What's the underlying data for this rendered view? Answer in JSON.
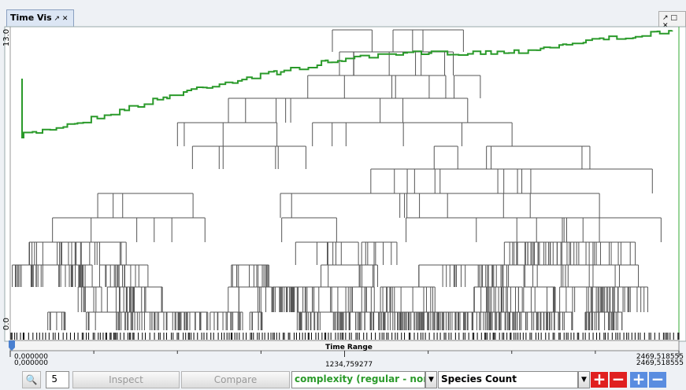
{
  "tab": {
    "title": "Time Vis"
  },
  "plot": {
    "y_max_label": "13.0",
    "y_min_label": "0.0"
  },
  "time_range": {
    "label": "Time Range",
    "start_labels": [
      "0,000000",
      "0,000000"
    ],
    "mid_label": "1234,759277",
    "end_labels": [
      "2469,518555",
      "2469,518555"
    ]
  },
  "toolbar": {
    "spinner_value": "5",
    "inspect": "Inspect",
    "compare": "Compare",
    "metric": "complexity (regular - normali...",
    "measure": "Species Count"
  }
}
